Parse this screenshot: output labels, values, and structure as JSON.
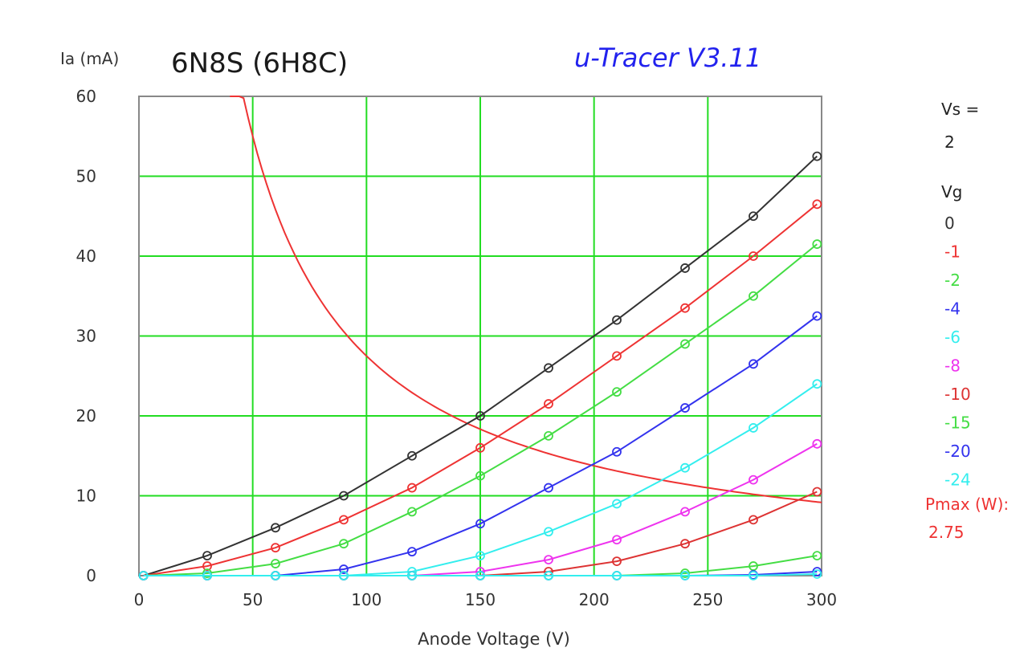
{
  "chart_data": {
    "type": "line",
    "title": "6N8S (6H8C)",
    "brand": "u-Tracer V3.11",
    "brand_color": "#2222ee",
    "xlabel": "Anode Voltage (V)",
    "ylabel": "Ia (mA)",
    "xlim": [
      0,
      300
    ],
    "ylim": [
      0,
      60
    ],
    "xticks": [
      "0",
      "50",
      "100",
      "150",
      "200",
      "250",
      "300"
    ],
    "yticks": [
      "0",
      "10",
      "20",
      "30",
      "40",
      "50",
      "60"
    ],
    "xtick_values": [
      0,
      50,
      100,
      150,
      200,
      250,
      300
    ],
    "ytick_values": [
      0,
      10,
      20,
      30,
      40,
      50,
      60
    ],
    "grid": true,
    "grid_color": "#22dd22",
    "legend_position": "right",
    "legend": {
      "vs_label": "Vs =",
      "vs_value": "2",
      "vg_label": "Vg",
      "pmax_label": "Pmax (W):",
      "pmax_value": "2.75",
      "pmax_color": "#ee3333"
    },
    "series": [
      {
        "name": "0",
        "color": "#333333",
        "x": [
          2,
          30,
          60,
          90,
          120,
          150,
          180,
          210,
          240,
          270,
          298
        ],
        "y": [
          0,
          2.5,
          6,
          10,
          15,
          20,
          26,
          32,
          38.5,
          45,
          52.5
        ]
      },
      {
        "name": "-1",
        "color": "#ee3333",
        "x": [
          2,
          30,
          60,
          90,
          120,
          150,
          180,
          210,
          240,
          270,
          298
        ],
        "y": [
          0,
          1.2,
          3.5,
          7,
          11,
          16,
          21.5,
          27.5,
          33.5,
          40,
          46.5
        ]
      },
      {
        "name": "-2",
        "color": "#44dd44",
        "x": [
          2,
          30,
          60,
          90,
          120,
          150,
          180,
          210,
          240,
          270,
          298
        ],
        "y": [
          0,
          0.3,
          1.5,
          4,
          8,
          12.5,
          17.5,
          23,
          29,
          35,
          41.5
        ]
      },
      {
        "name": "-4",
        "color": "#3333ee",
        "x": [
          2,
          30,
          60,
          90,
          120,
          150,
          180,
          210,
          240,
          270,
          298
        ],
        "y": [
          0,
          0,
          0,
          0.8,
          3,
          6.5,
          11,
          15.5,
          21,
          26.5,
          32.5
        ]
      },
      {
        "name": "-6",
        "color": "#33eeee",
        "x": [
          2,
          30,
          60,
          90,
          120,
          150,
          180,
          210,
          240,
          270,
          298
        ],
        "y": [
          0,
          0,
          0,
          0,
          0.5,
          2.5,
          5.5,
          9,
          13.5,
          18.5,
          24
        ]
      },
      {
        "name": "-8",
        "color": "#ee33ee",
        "x": [
          2,
          30,
          60,
          90,
          120,
          150,
          180,
          210,
          240,
          270,
          298
        ],
        "y": [
          0,
          0,
          0,
          0,
          0,
          0.5,
          2,
          4.5,
          8,
          12,
          16.5
        ]
      },
      {
        "name": "-10",
        "color": "#dd3333",
        "x": [
          2,
          30,
          60,
          90,
          120,
          150,
          180,
          210,
          240,
          270,
          298
        ],
        "y": [
          0,
          0,
          0,
          0,
          0,
          0,
          0.5,
          1.8,
          4,
          7,
          10.5
        ]
      },
      {
        "name": "-15",
        "color": "#44dd44",
        "x": [
          2,
          30,
          60,
          90,
          120,
          150,
          180,
          210,
          240,
          270,
          298
        ],
        "y": [
          0,
          0,
          0,
          0,
          0,
          0,
          0,
          0,
          0.3,
          1.2,
          2.5
        ]
      },
      {
        "name": "-20",
        "color": "#3333ee",
        "x": [
          2,
          30,
          60,
          90,
          120,
          150,
          180,
          210,
          240,
          270,
          298
        ],
        "y": [
          0,
          0,
          0,
          0,
          0,
          0,
          0,
          0,
          0,
          0.1,
          0.5
        ]
      },
      {
        "name": "-24",
        "color": "#33eeee",
        "x": [
          2,
          30,
          60,
          90,
          120,
          150,
          180,
          210,
          240,
          270,
          298
        ],
        "y": [
          0,
          0,
          0,
          0,
          0,
          0,
          0,
          0,
          0,
          0,
          0.2
        ]
      }
    ],
    "pmax_watts": 2.75
  }
}
